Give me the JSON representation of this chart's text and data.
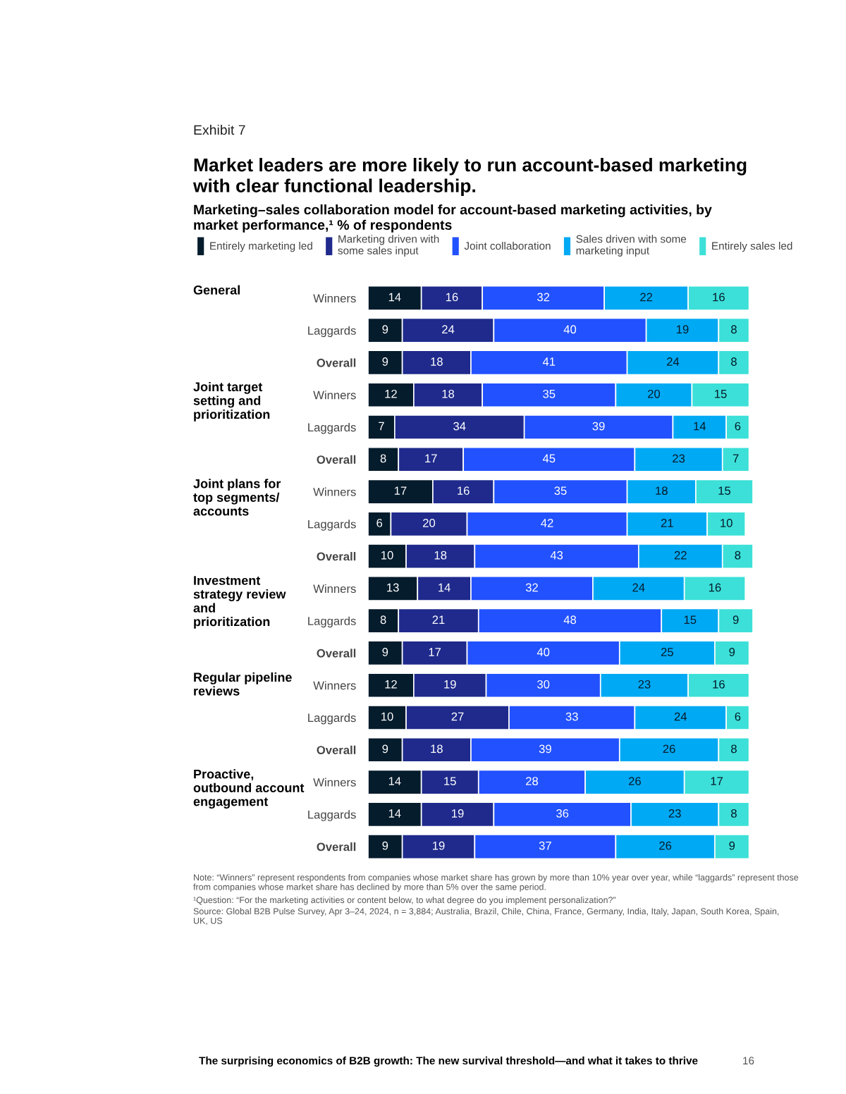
{
  "chart_data": [
    {
      "type": "other",
      "title": "Market leaders are more likely to run account-based marketing with clear functional leadership.",
      "subtitle": "Marketing–sales collaboration model for account-based marketing activities, by market performance,¹ % of respondents",
      "annotations": [
        "Exhibit 7"
      ]
    },
    {
      "type": "bar",
      "orientation": "horizontal",
      "stacked": true,
      "data_labels": true,
      "tick_labels": "y",
      "legend": "top",
      "annotations": [
        "General",
        "Joint target setting and prioritization",
        "Joint plans for top segments/ accounts",
        "Investment strategy review and prioritization",
        "Regular pipeline reviews",
        "Proactive, outbound account engagement"
      ],
      "categories": [
        "Winners",
        "Laggards",
        "Overall",
        "Winners",
        "Laggards",
        "Overall",
        "Winners",
        "Laggards",
        "Overall",
        "Winners",
        "Laggards",
        "Overall",
        "Winners",
        "Laggards",
        "Overall",
        "Winners",
        "Laggards",
        "Overall"
      ],
      "series": [
        {
          "name": "Entirely marketing led",
          "color": "#051c2c",
          "values": [
            14,
            9,
            9,
            12,
            7,
            8,
            17,
            6,
            10,
            13,
            8,
            9,
            12,
            10,
            9,
            14,
            14,
            9
          ]
        },
        {
          "name": "Marketing driven with some sales input",
          "color": "#1f2a8c",
          "values": [
            16,
            24,
            18,
            18,
            34,
            17,
            16,
            20,
            18,
            14,
            21,
            17,
            19,
            27,
            18,
            15,
            19,
            19
          ]
        },
        {
          "name": "Joint collaboration",
          "color": "#2251ff",
          "values": [
            32,
            40,
            41,
            35,
            39,
            45,
            35,
            42,
            43,
            32,
            48,
            40,
            30,
            33,
            39,
            28,
            36,
            37
          ]
        },
        {
          "name": "Sales driven with some marketing input",
          "color": "#00a9f4",
          "values": [
            22,
            19,
            24,
            20,
            14,
            23,
            18,
            21,
            22,
            24,
            15,
            25,
            23,
            24,
            26,
            26,
            23,
            26
          ]
        },
        {
          "name": "Entirely sales led",
          "color": "#3ce0d8",
          "values": [
            16,
            8,
            8,
            15,
            6,
            7,
            15,
            10,
            8,
            16,
            9,
            9,
            16,
            6,
            8,
            17,
            8,
            9
          ]
        }
      ]
    },
    {
      "type": "other",
      "annotations": [
        "Note: “Winners” represent respondents from companies whose market share has grown by more than 10% year over year, while “laggards” represent those from companies whose market share has declined by more than 5% over the same period.",
        "¹Question: “For the marketing activities or content below, to what degree do you implement personalization?”",
        "Source: Global B2B Pulse Survey, Apr 3–24, 2024, n = 3,884; Australia, Brazil, Chile, China, France, Germany, India, Italy, Japan, South Korea, Spain, UK, US",
        "The surprising economics of B2B growth: The new survival threshold—and what it takes to thrive",
        "16"
      ]
    }
  ]
}
